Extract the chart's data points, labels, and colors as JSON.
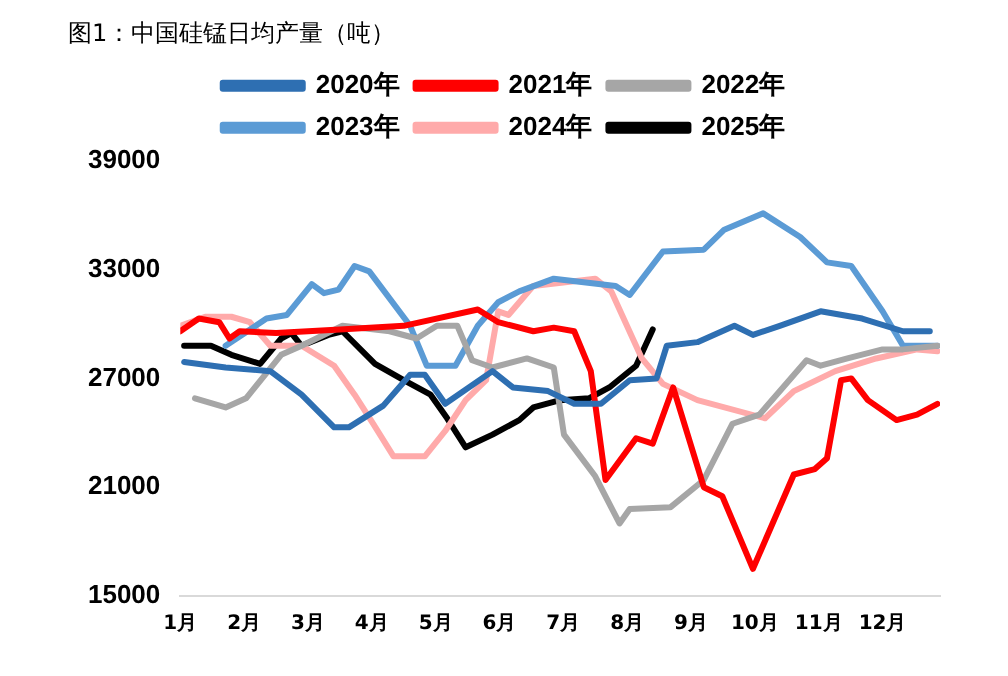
{
  "chart_data": {
    "type": "line",
    "title": "图1：中国硅锰日均产量（吨）",
    "xlim": [
      1,
      12.9
    ],
    "xticks": [
      {
        "value": 1,
        "label": "1月"
      },
      {
        "value": 2,
        "label": "2月"
      },
      {
        "value": 3,
        "label": "3月"
      },
      {
        "value": 4,
        "label": "4月"
      },
      {
        "value": 5,
        "label": "5月"
      },
      {
        "value": 6,
        "label": "6月"
      },
      {
        "value": 7,
        "label": "7月"
      },
      {
        "value": 8,
        "label": "8月"
      },
      {
        "value": 9,
        "label": "9月"
      },
      {
        "value": 10,
        "label": "10月"
      },
      {
        "value": 11,
        "label": "11月"
      },
      {
        "value": 12,
        "label": "12月"
      }
    ],
    "ylim": [
      15000,
      39000
    ],
    "yticks": [
      15000,
      21000,
      27000,
      33000,
      39000
    ],
    "grid": false,
    "legend": "top",
    "marker": "none",
    "line_style": "solid",
    "series": [
      {
        "name": "2020年",
        "color": "#2e6fb2",
        "x": [
          1.06,
          1.71,
          2.41,
          2.9,
          3.41,
          3.64,
          4.18,
          4.6,
          4.83,
          5.15,
          5.89,
          6.21,
          6.76,
          7.17,
          7.59,
          8.04,
          8.46,
          8.62,
          9.1,
          9.68,
          9.97,
          10.39,
          11.03,
          11.68,
          12.32,
          12.74
        ],
        "values": [
          27900,
          27600,
          27400,
          26100,
          24300,
          24300,
          25500,
          27200,
          27200,
          25600,
          27400,
          26500,
          26300,
          25600,
          25600,
          26900,
          27000,
          28800,
          29000,
          29900,
          29400,
          29900,
          30700,
          30300,
          29600,
          29600
        ]
      },
      {
        "name": "2021年",
        "color": "#ff0000",
        "x": [
          1,
          1.29,
          1.61,
          1.77,
          1.93,
          2.5,
          3.5,
          4.5,
          5.66,
          5.98,
          6.53,
          6.85,
          7.17,
          7.43,
          7.66,
          8.14,
          8.4,
          8.72,
          9.2,
          9.49,
          9.97,
          10.61,
          10.94,
          11.13,
          11.35,
          11.51,
          11.77,
          12.22,
          12.54,
          12.86
        ],
        "values": [
          29600,
          30300,
          30100,
          29200,
          29600,
          29500,
          29700,
          29900,
          30800,
          30100,
          29600,
          29800,
          29600,
          27400,
          21400,
          23700,
          23400,
          26500,
          21000,
          20500,
          16500,
          21700,
          22000,
          22600,
          26900,
          27000,
          25800,
          24700,
          25000,
          25600
        ]
      },
      {
        "name": "2022年",
        "color": "#a6a6a6",
        "x": [
          1.23,
          1.71,
          2.03,
          2.58,
          2.9,
          3.54,
          4.28,
          4.7,
          5.02,
          5.34,
          5.57,
          5.89,
          6.43,
          6.85,
          7.01,
          7.5,
          7.88,
          8.04,
          8.68,
          9.2,
          9.65,
          10.07,
          10.81,
          11.03,
          11.45,
          12,
          12.32,
          12.86
        ],
        "values": [
          25900,
          25400,
          25900,
          28300,
          28800,
          29900,
          29600,
          29200,
          29900,
          29900,
          28000,
          27600,
          28100,
          27600,
          23900,
          21600,
          19000,
          19800,
          19900,
          21400,
          24500,
          25000,
          28000,
          27700,
          28100,
          28600,
          28600,
          28800
        ]
      },
      {
        "name": "2023年",
        "color": "#5b9bd5",
        "x": [
          1.71,
          2.35,
          2.67,
          3.06,
          3.25,
          3.48,
          3.73,
          3.96,
          4.6,
          4.86,
          5.31,
          5.66,
          5.98,
          6.31,
          6.85,
          7.82,
          8.04,
          8.56,
          9.2,
          9.52,
          10.13,
          10.71,
          11.13,
          11.51,
          12,
          12.32,
          12.86
        ],
        "values": [
          28800,
          30300,
          30500,
          32200,
          31700,
          31900,
          33200,
          32900,
          29900,
          27700,
          27700,
          29900,
          31200,
          31800,
          32500,
          32100,
          31600,
          34000,
          34100,
          35200,
          36100,
          34800,
          33400,
          33200,
          30700,
          28800,
          28800
        ]
      },
      {
        "name": "2024年",
        "color": "#ffaaaa",
        "x": [
          1,
          1.39,
          1.8,
          2.09,
          2.41,
          2.9,
          3.41,
          3.73,
          4.02,
          4.34,
          4.83,
          5.15,
          5.47,
          5.79,
          5.98,
          6.14,
          6.53,
          7.5,
          7.75,
          8.23,
          8.56,
          9.1,
          10.16,
          10.61,
          11.26,
          11.9,
          12.54,
          12.86
        ],
        "values": [
          29900,
          30400,
          30400,
          30100,
          28800,
          28800,
          27700,
          26100,
          24500,
          22700,
          22700,
          24100,
          25800,
          26900,
          30700,
          30500,
          32100,
          32500,
          31800,
          28100,
          26700,
          25800,
          24800,
          26300,
          27400,
          28100,
          28600,
          28500
        ]
      },
      {
        "name": "2025年",
        "color": "#000000",
        "x": [
          1.06,
          1.48,
          1.8,
          2.25,
          2.58,
          2.74,
          2.9,
          3.32,
          3.54,
          4.05,
          4.5,
          4.92,
          5.18,
          5.47,
          5.89,
          6.31,
          6.53,
          6.95,
          7.4,
          7.72,
          8.14,
          8.4
        ],
        "values": [
          28800,
          28800,
          28300,
          27800,
          29200,
          29500,
          28800,
          29400,
          29600,
          27800,
          26900,
          26100,
          24800,
          23200,
          23900,
          24700,
          25400,
          25800,
          25900,
          26500,
          27700,
          29700
        ]
      }
    ]
  }
}
